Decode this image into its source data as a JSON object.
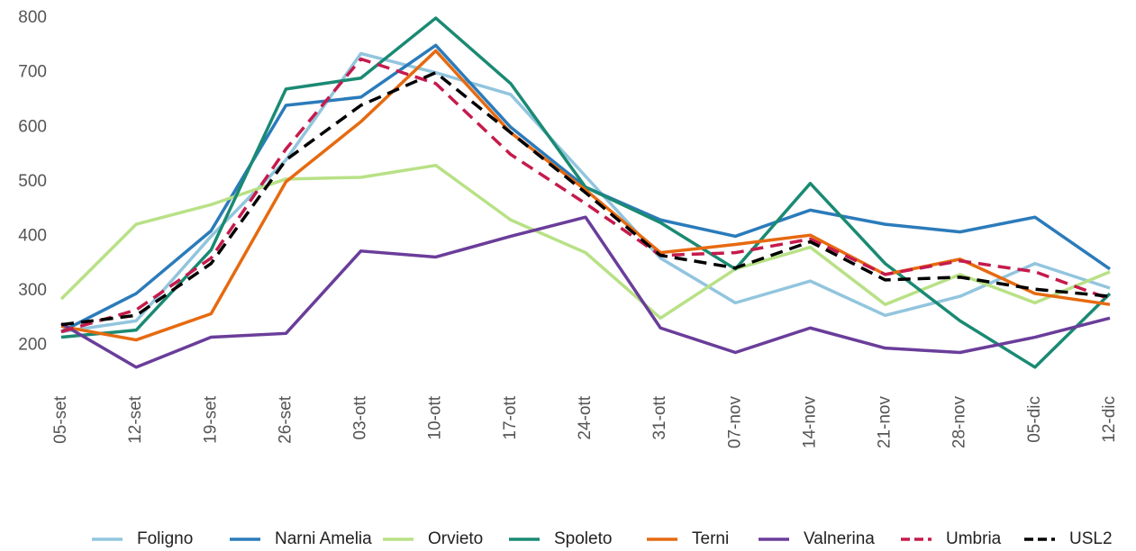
{
  "chart_data": {
    "type": "line",
    "categories": [
      "05-set",
      "12-set",
      "19-set",
      "26-set",
      "03-ott",
      "10-ott",
      "17-ott",
      "24-ott",
      "31-ott",
      "07-nov",
      "14-nov",
      "21-nov",
      "28-nov",
      "05-dic",
      "12-dic"
    ],
    "ylim": [
      140,
      810
    ],
    "yticks": [
      200,
      300,
      400,
      500,
      600,
      700,
      800
    ],
    "grid": false,
    "legend": "bottom",
    "series": [
      {
        "name": "Foligno",
        "color": "#92c5de",
        "dashed": false,
        "values": [
          225,
          245,
          400,
          540,
          735,
          700,
          660,
          510,
          360,
          278,
          318,
          255,
          290,
          350,
          305
        ]
      },
      {
        "name": "Narni Amelia",
        "color": "#2b7bba",
        "dashed": false,
        "values": [
          225,
          295,
          410,
          640,
          655,
          750,
          600,
          490,
          430,
          400,
          448,
          422,
          408,
          435,
          340
        ]
      },
      {
        "name": "Orvieto",
        "color": "#b8e186",
        "dashed": false,
        "values": [
          285,
          422,
          458,
          505,
          508,
          530,
          430,
          370,
          250,
          340,
          380,
          275,
          330,
          278,
          335
        ]
      },
      {
        "name": "Spoleto",
        "color": "#1a8a73",
        "dashed": false,
        "values": [
          215,
          228,
          375,
          670,
          690,
          800,
          680,
          490,
          425,
          340,
          497,
          350,
          245,
          160,
          295
        ]
      },
      {
        "name": "Terni",
        "color": "#e66a10",
        "dashed": false,
        "values": [
          235,
          210,
          258,
          500,
          610,
          740,
          590,
          485,
          370,
          385,
          402,
          330,
          358,
          295,
          275
        ]
      },
      {
        "name": "Valnerina",
        "color": "#6a3d9a",
        "dashed": false,
        "values": [
          240,
          160,
          215,
          222,
          373,
          362,
          400,
          435,
          232,
          187,
          232,
          195,
          187,
          215,
          250
        ]
      },
      {
        "name": "Umbria",
        "color": "#c51b4c",
        "dashed": true,
        "values": [
          225,
          265,
          360,
          560,
          725,
          680,
          550,
          460,
          365,
          370,
          395,
          330,
          355,
          335,
          285
        ]
      },
      {
        "name": "USL2",
        "color": "#000000",
        "dashed": true,
        "values": [
          238,
          255,
          350,
          540,
          640,
          700,
          590,
          480,
          365,
          342,
          390,
          320,
          325,
          303,
          290
        ]
      }
    ]
  }
}
